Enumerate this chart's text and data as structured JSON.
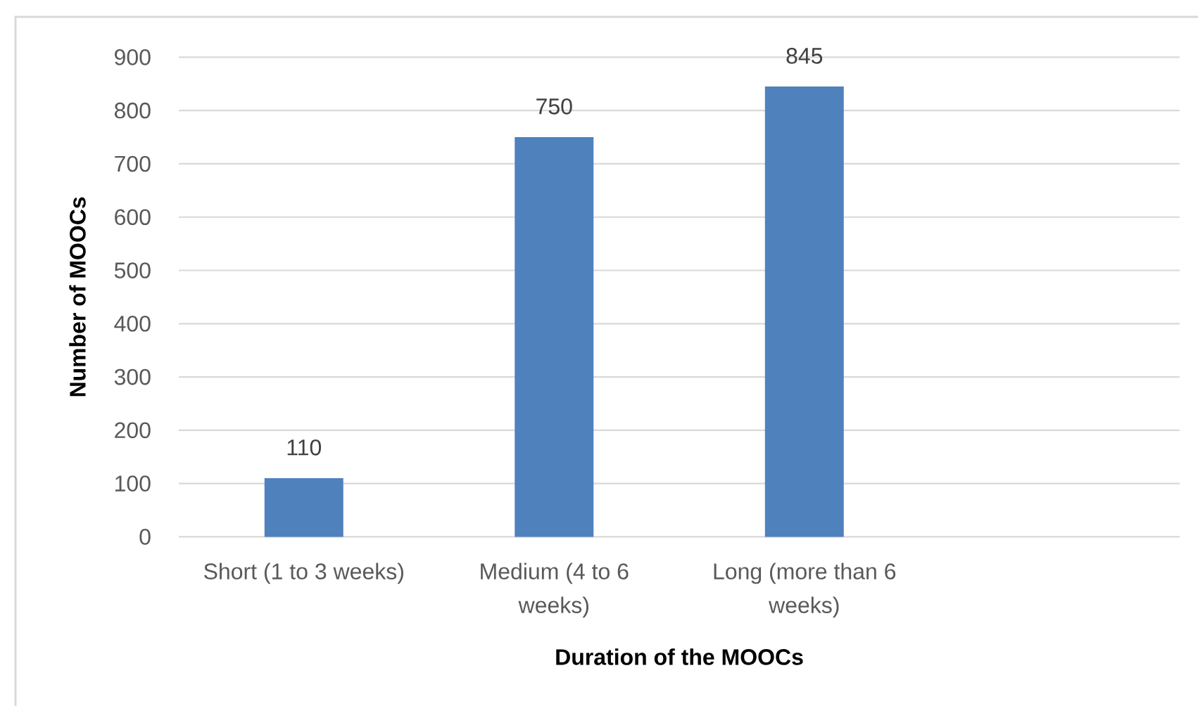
{
  "chart_data": {
    "type": "bar",
    "xlabel": "Duration of the MOOCs",
    "ylabel": "Number of MOOCs",
    "categories": [
      "Short (1 to 3 weeks)",
      "Medium (4 to 6 weeks)",
      "Long (more than 6 weeks)",
      null
    ],
    "values": [
      110,
      750,
      845,
      null
    ],
    "color": "#4f81bd",
    "ylim": [
      0,
      900
    ],
    "yticks": [
      0,
      100,
      200,
      300,
      400,
      500,
      600,
      700,
      800,
      900
    ],
    "grid": "y",
    "data_labels": true
  }
}
